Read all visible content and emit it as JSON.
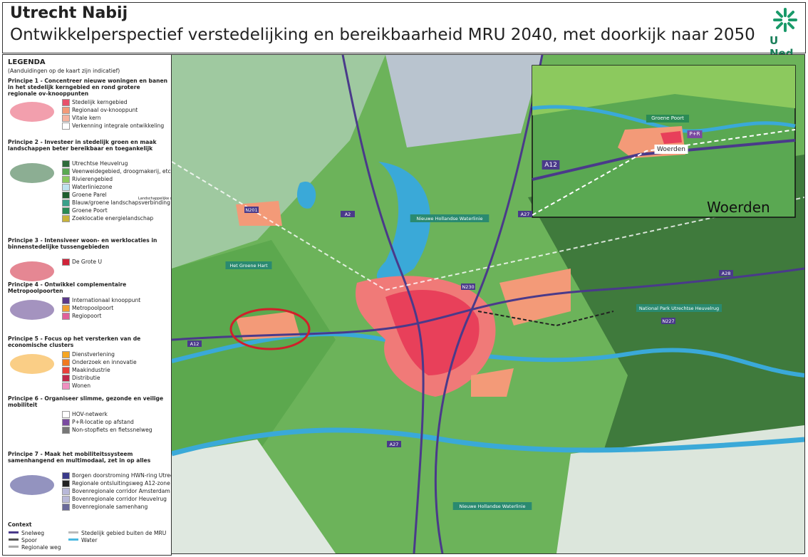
{
  "header": {
    "title": "Utrecht Nabij",
    "subtitle": "Ontwikkelperspectief verstedelijking en bereikbaarheid MRU 2040, met doorkijk naar 2050",
    "logo": "U Ned"
  },
  "legend": {
    "title": "LEGENDA",
    "note": "(Aanduidingen op de kaart zijn indicatief)",
    "sections": [
      {
        "heading": "Principe 1 - Concentreer nieuwe woningen en banen in het stedelijk kerngebied en rond grotere regionale ov-knooppunten",
        "items": [
          {
            "label": "Stedelijk kerngebied",
            "color": "#e8506a"
          },
          {
            "label": "Regionaal ov-knooppunt",
            "color": "#f39a78"
          },
          {
            "label": "Vitale kern",
            "color": "#f6b3a0"
          },
          {
            "label": "Verkenning integrale ontwikkeling",
            "color": "#ffffff"
          }
        ]
      },
      {
        "heading": "Principe 2 - Investeer in stedelijk groen en maak landschappen beter bereikbaar en toegankelijk",
        "note": "Landschappelijke schag",
        "items": [
          {
            "label": "Utrechtse Heuvelrug",
            "color": "#2e6b3a"
          },
          {
            "label": "Veenweidegebied, droogmakerij, etc.",
            "color": "#5aa852"
          },
          {
            "label": "Rivierengebied",
            "color": "#8cc95e"
          },
          {
            "label": "Waterliniezone",
            "color": "#bfe3f0"
          },
          {
            "label": "Groene Parel",
            "color": "#1f5e2e"
          },
          {
            "label": "Blauw/groene landschapsverbinding",
            "color": "#3aa08a"
          },
          {
            "label": "Groene Poort",
            "color": "#2a8a55"
          },
          {
            "label": "Zoeklocatie energielandschap",
            "color": "#c8b33a"
          }
        ]
      },
      {
        "heading": "Principe 3 - Intensiveer woon- en werklocaties in binnenstedelijke tussengebieden",
        "items": [
          {
            "label": "De Grote U",
            "color": "#d0243a"
          }
        ]
      },
      {
        "heading": "Principe 4 - Ontwikkel complementaire Metropoolpoorten",
        "items": [
          {
            "label": "Internationaal knooppunt",
            "color": "#5a3a8a"
          },
          {
            "label": "Metropoolpoort",
            "color": "#f0a030"
          },
          {
            "label": "Regiopoort",
            "color": "#e0609a"
          }
        ]
      },
      {
        "heading": "Principe 5 - Focus op het versterken van de economische clusters",
        "items": [
          {
            "label": "Dienstverlening",
            "color": "#f5a623"
          },
          {
            "label": "Onderzoek en innovatie",
            "color": "#f07a20"
          },
          {
            "label": "Maakindustrie",
            "color": "#e8403a"
          },
          {
            "label": "Distributie",
            "color": "#c0284a"
          },
          {
            "label": "Wonen",
            "color": "#f090c0"
          }
        ]
      },
      {
        "heading": "Principe 6 - Organiseer slimme, gezonde en veilige mobiliteit",
        "items": [
          {
            "label": "HOV-netwerk",
            "color": "#ffffff"
          },
          {
            "label": "P+R-locatie op afstand",
            "color": "#7a4aa0"
          },
          {
            "label": "Non-stopfiets en fietssnelweg",
            "color": "#777777"
          }
        ]
      },
      {
        "heading": "Principe 7 - Maak het mobiliteitssysteem samenhangend en multimodaal, zet in op alles",
        "items": [
          {
            "label": "Borgen doorstroming HWN-ring Utrecht",
            "color": "#3a3a8a"
          },
          {
            "label": "Regionale ontsluitingsweg A12-zone",
            "color": "#222222"
          },
          {
            "label": "Bovenregionale corridor Amsterdam",
            "color": "#b8b8d8"
          },
          {
            "label": "Bovenregionale corridor Heuvelrug",
            "color": "#b8b8d8"
          },
          {
            "label": "Bovenregionale samenhang",
            "color": "#6a6a9a"
          }
        ]
      }
    ],
    "context": {
      "heading": "Context",
      "items": [
        {
          "label": "Snelweg",
          "color": "#4a3a8a"
        },
        {
          "label": "Spoor",
          "color": "#555555"
        },
        {
          "label": "Regionale weg",
          "color": "#aaaaaa"
        },
        {
          "label": "Stedelijk gebied buiten de MRU",
          "color": "#bbbbbb"
        },
        {
          "label": "Water",
          "color": "#4ab8e0"
        }
      ]
    }
  },
  "map": {
    "labels": [
      "Het Groene Hart",
      "Nieuwe Hollandse Waterlinie",
      "National Park Utrechtse Heuvelrug",
      "Nieuwe Hollandse Waterlinie",
      "A2",
      "A27",
      "A28",
      "N201",
      "N227",
      "A12",
      "A27",
      "N230"
    ]
  },
  "inset": {
    "caption": "Woerden",
    "labels": [
      "Groene Poort",
      "P+R",
      "Woerden",
      "A12"
    ]
  }
}
